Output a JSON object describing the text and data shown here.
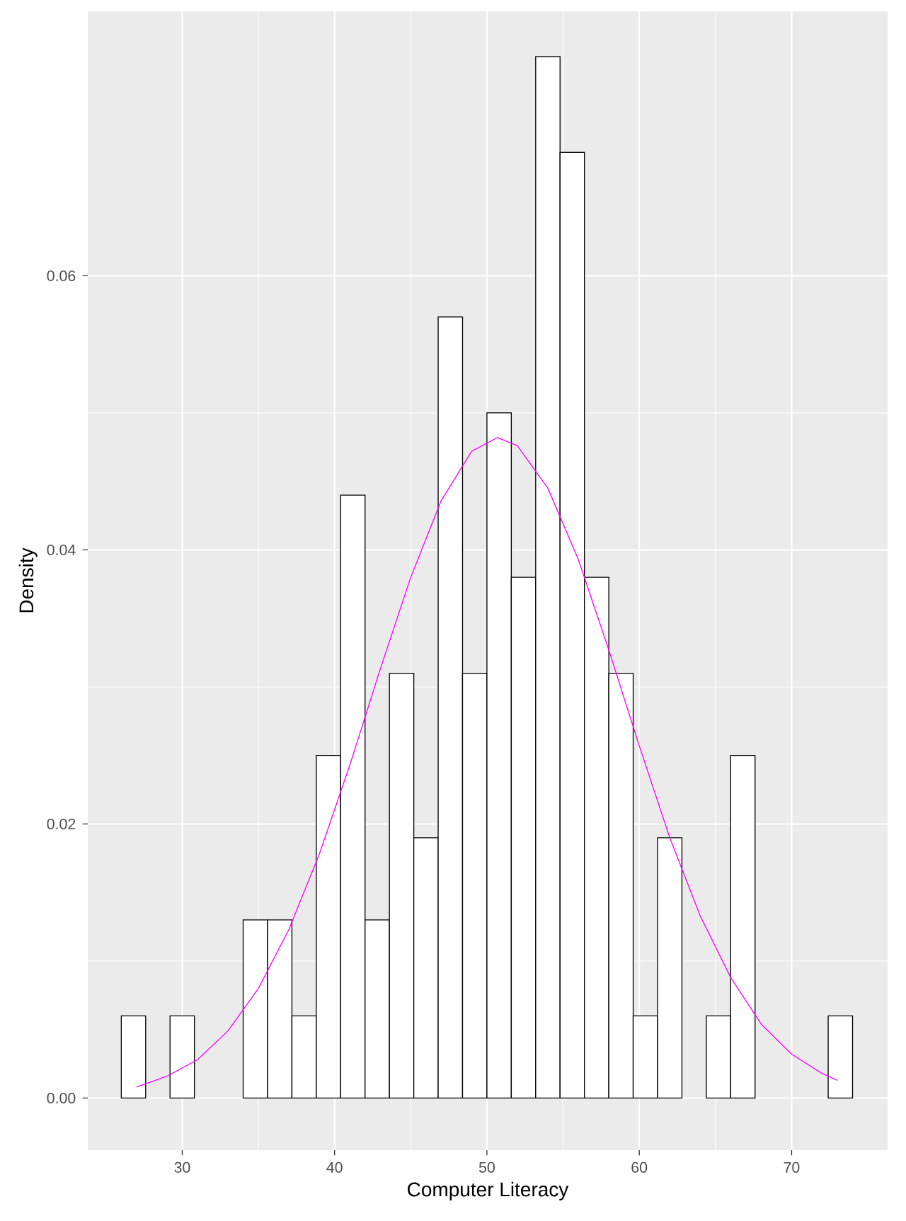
{
  "chart_data": {
    "type": "histogram",
    "xlabel": "Computer Literacy",
    "ylabel": "Density",
    "bins": [
      26.0,
      27.6,
      29.2,
      30.8,
      32.4,
      34.0,
      35.6,
      37.2,
      38.8,
      40.4,
      42.0,
      43.6,
      45.2,
      46.8,
      48.4,
      50.0,
      51.6,
      53.2,
      54.8,
      56.4,
      58.0,
      59.6,
      61.2,
      62.8,
      64.4,
      66.0,
      67.6,
      69.2,
      70.8,
      72.4,
      74.0
    ],
    "values": [
      0.006,
      0,
      0.006,
      0,
      0,
      0.013,
      0.013,
      0.006,
      0.025,
      0.044,
      0.013,
      0.031,
      0.019,
      0.057,
      0.031,
      0.05,
      0.038,
      0.076,
      0.069,
      0.038,
      0.031,
      0.006,
      0.019,
      0,
      0.006,
      0.025,
      0,
      0,
      0,
      0.006
    ],
    "color": "#ffffff",
    "series": [
      {
        "type": "line",
        "color": "#ff00ff",
        "x": [
          27,
          29,
          31,
          33,
          35,
          37,
          39,
          41,
          43,
          45,
          47,
          49,
          50.7,
          52,
          54,
          56,
          58,
          60,
          62,
          64,
          66,
          68,
          70,
          72,
          73
        ],
        "values": [
          0.0008,
          0.0016,
          0.0028,
          0.0049,
          0.008,
          0.0123,
          0.0178,
          0.0243,
          0.0313,
          0.038,
          0.0436,
          0.0472,
          0.0482,
          0.0476,
          0.0445,
          0.0393,
          0.0327,
          0.0257,
          0.019,
          0.0133,
          0.0088,
          0.0054,
          0.0032,
          0.0018,
          0.0013
        ]
      }
    ],
    "xlim": [
      23.8,
      76.3
    ],
    "ylim": [
      -0.0038,
      0.0793
    ],
    "xticks": [
      30,
      40,
      50,
      60,
      70
    ],
    "yticks": [
      {
        "value": 0,
        "label": "0.00"
      },
      {
        "value": 0.02,
        "label": "0.02"
      },
      {
        "value": 0.04,
        "label": "0.04"
      },
      {
        "value": 0.06,
        "label": "0.06"
      }
    ],
    "grid": true
  }
}
